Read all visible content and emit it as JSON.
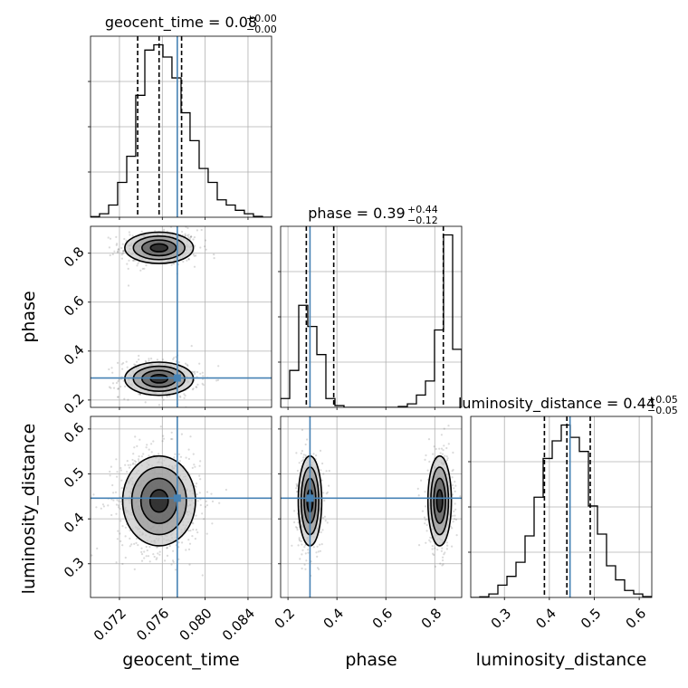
{
  "parameters": [
    "geocent_time",
    "phase",
    "luminosity_distance"
  ],
  "titles": {
    "geocent_time": {
      "label": "geocent_time",
      "median": "0.08",
      "plus": "+0.00",
      "minus": "−0.00"
    },
    "phase": {
      "label": "phase",
      "median": "0.39",
      "plus": "+0.44",
      "minus": "−0.12"
    },
    "luminosity_distance": {
      "label": "luminosity_distance",
      "median": "0.44",
      "plus": "+0.05",
      "minus": "−0.05"
    }
  },
  "axis_labels": {
    "x": [
      "geocent_time",
      "phase",
      "luminosity_distance"
    ],
    "y": [
      "phase",
      "luminosity_distance"
    ]
  },
  "colors": {
    "truth": "#4682b4",
    "lines": "#000000",
    "grid": "#b0b0b0",
    "background": "#ffffff"
  },
  "chart_data": {
    "type": "corner",
    "parameters": [
      "geocent_time",
      "phase",
      "luminosity_distance"
    ],
    "ranges": {
      "geocent_time": [
        0.0693,
        0.0862
      ],
      "phase": [
        0.17,
        0.91
      ],
      "luminosity_distance": [
        0.225,
        0.628
      ]
    },
    "ticks": {
      "geocent_time": [
        0.072,
        0.076,
        0.08,
        0.084
      ],
      "phase": [
        0.2,
        0.4,
        0.6,
        0.8
      ],
      "luminosity_distance": [
        0.3,
        0.4,
        0.5,
        0.6
      ]
    },
    "tick_labels": {
      "geocent_time": [
        "0.072",
        "0.076",
        "0.080",
        "0.084"
      ],
      "phase": [
        "0.2",
        "0.4",
        "0.6",
        "0.8"
      ],
      "luminosity_distance": [
        "0.3",
        "0.4",
        "0.5",
        "0.6"
      ]
    },
    "truths": {
      "geocent_time": 0.0774,
      "phase": 0.29,
      "luminosity_distance": 0.446
    },
    "quantiles": {
      "geocent_time": [
        0.0737,
        0.0757,
        0.0778
      ],
      "phase": [
        0.275,
        0.387,
        0.835
      ],
      "luminosity_distance": [
        0.389,
        0.439,
        0.491
      ]
    },
    "histograms": {
      "geocent_time": {
        "edges": [
          0.0693,
          0.07014,
          0.07099,
          0.07183,
          0.07268,
          0.07352,
          0.07437,
          0.07521,
          0.07606,
          0.0769,
          0.07775,
          0.07859,
          0.07944,
          0.08028,
          0.08113,
          0.08197,
          0.08282,
          0.08366,
          0.08451,
          0.08535,
          0.0862
        ],
        "counts": [
          0.004,
          0.02,
          0.07,
          0.2,
          0.35,
          0.7,
          0.96,
          0.99,
          0.92,
          0.8,
          0.6,
          0.44,
          0.28,
          0.2,
          0.1,
          0.07,
          0.04,
          0.02,
          0.005,
          0
        ]
      },
      "phase": {
        "edges": [
          0.17,
          0.207,
          0.244,
          0.281,
          0.318,
          0.355,
          0.392,
          0.429,
          0.466,
          0.503,
          0.54,
          0.577,
          0.614,
          0.651,
          0.688,
          0.725,
          0.762,
          0.799,
          0.836,
          0.873,
          0.91
        ],
        "counts": [
          0.05,
          0.21,
          0.58,
          0.46,
          0.3,
          0.05,
          0.01,
          0,
          0,
          0,
          0,
          0,
          0,
          0.005,
          0.02,
          0.07,
          0.15,
          0.44,
          0.98,
          0.33
        ]
      },
      "luminosity_distance": {
        "edges": [
          0.225,
          0.24515,
          0.2653,
          0.28545,
          0.3056,
          0.32575,
          0.3459,
          0.36605,
          0.3862,
          0.40635,
          0.4265,
          0.44665,
          0.4668,
          0.48695,
          0.5071,
          0.52725,
          0.5474,
          0.56755,
          0.5877,
          0.60785,
          0.628
        ],
        "counts": [
          0,
          0.004,
          0.02,
          0.07,
          0.12,
          0.2,
          0.35,
          0.57,
          0.79,
          0.89,
          0.98,
          0.91,
          0.83,
          0.52,
          0.36,
          0.18,
          0.1,
          0.04,
          0.02,
          0.005
        ]
      }
    },
    "contours_2d": [
      {
        "x": "geocent_time",
        "y": "phase",
        "modes": [
          {
            "center": [
              0.0757,
              0.822
            ],
            "sigma": [
              0.0016,
              0.032
            ],
            "weight": 0.5
          },
          {
            "center": [
              0.0757,
              0.287
            ],
            "sigma": [
              0.0016,
              0.034
            ],
            "weight": 0.5
          }
        ]
      },
      {
        "x": "geocent_time",
        "y": "luminosity_distance",
        "modes": [
          {
            "center": [
              0.0757,
              0.44
            ],
            "sigma": [
              0.0017,
              0.05
            ],
            "weight": 1.0
          }
        ]
      },
      {
        "x": "phase",
        "y": "luminosity_distance",
        "modes": [
          {
            "center": [
              0.29,
              0.44
            ],
            "sigma": [
              0.024,
              0.05
            ],
            "weight": 0.5
          },
          {
            "center": [
              0.82,
              0.44
            ],
            "sigma": [
              0.024,
              0.05
            ],
            "weight": 0.5
          }
        ]
      }
    ],
    "contour_levels_sigma": [
      0.5,
      1.0,
      1.5,
      2.0
    ]
  }
}
